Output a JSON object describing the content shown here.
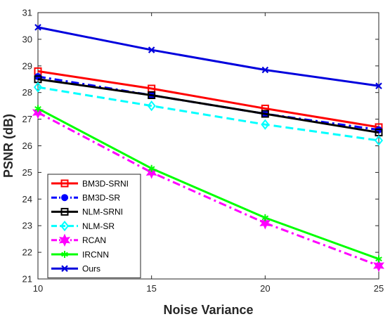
{
  "chart_data": {
    "type": "line",
    "xlabel": "Noise Variance",
    "ylabel": "PSNR (dB)",
    "x": [
      10,
      15,
      20,
      25
    ],
    "xlim": [
      10,
      25
    ],
    "ylim": [
      21,
      31
    ],
    "xticks": [
      10,
      15,
      20,
      25
    ],
    "yticks": [
      21,
      22,
      23,
      24,
      25,
      26,
      27,
      28,
      29,
      30,
      31
    ],
    "grid": false,
    "legend_position": "bottom-left",
    "series": [
      {
        "name": "BM3D-SRNI",
        "values": [
          28.8,
          28.15,
          27.4,
          26.7
        ],
        "color": "#ff0000",
        "line": "solid",
        "marker": "square"
      },
      {
        "name": "BM3D-SR",
        "values": [
          28.6,
          27.9,
          27.2,
          26.6
        ],
        "color": "#0000ff",
        "line": "dashdot",
        "marker": "circle"
      },
      {
        "name": "NLM-SRNI",
        "values": [
          28.5,
          27.9,
          27.2,
          26.5
        ],
        "color": "#000000",
        "line": "solid",
        "marker": "square"
      },
      {
        "name": "NLM-SR",
        "values": [
          28.2,
          27.5,
          26.8,
          26.2
        ],
        "color": "#00ffff",
        "line": "dashed",
        "marker": "diamond"
      },
      {
        "name": "RCAN",
        "values": [
          27.25,
          25.0,
          23.1,
          21.5
        ],
        "color": "#ff00ff",
        "line": "dashdot",
        "marker": "hexagram"
      },
      {
        "name": "IRCNN",
        "values": [
          27.4,
          25.15,
          23.3,
          21.75
        ],
        "color": "#00ff00",
        "line": "solid",
        "marker": "asterisk"
      },
      {
        "name": "Ours",
        "values": [
          30.45,
          29.6,
          28.85,
          28.25
        ],
        "color": "#0000dd",
        "line": "solid",
        "marker": "cross"
      }
    ]
  }
}
